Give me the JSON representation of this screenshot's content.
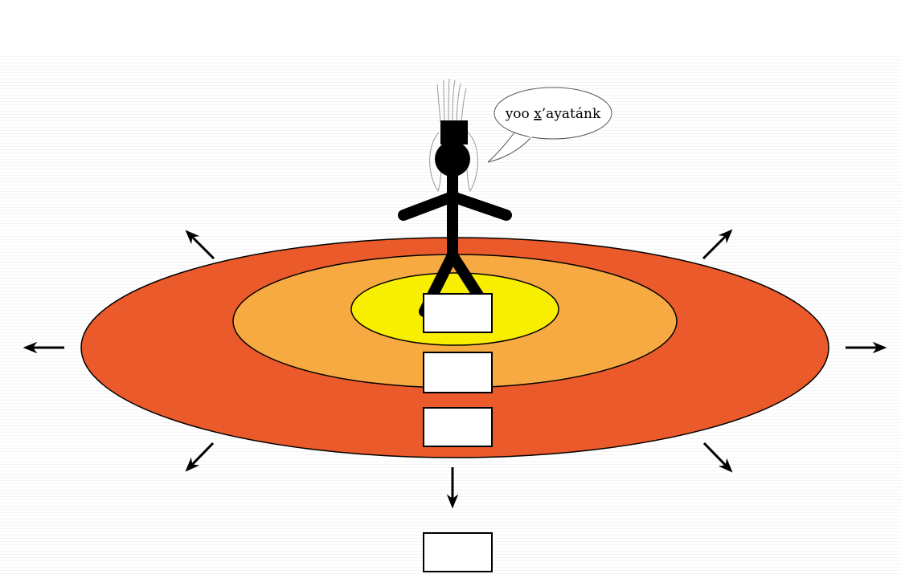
{
  "speech_bubble": {
    "text_before": "yoo",
    "text_underlined": "x",
    "text_after": "’ayatánk"
  }
}
